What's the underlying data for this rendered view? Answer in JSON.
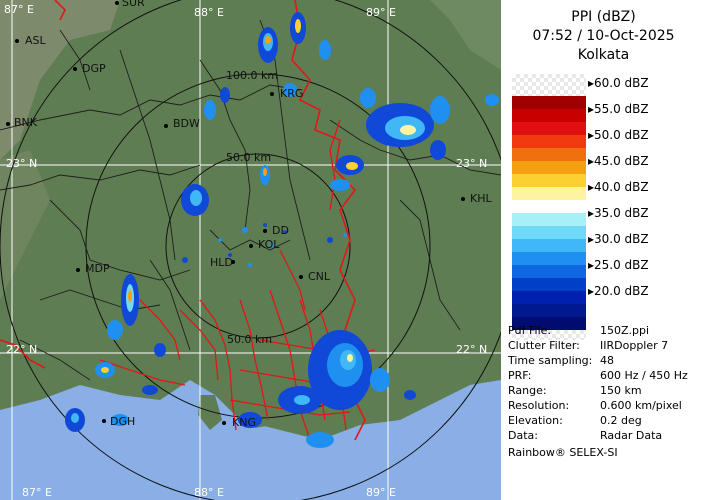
{
  "product": {
    "title": "PPI (dBZ)",
    "time_date": "07:52 / 10-Oct-2025",
    "station": "Kolkata"
  },
  "legend": {
    "ticks": [
      "60.0 dBZ",
      "55.0 dBZ",
      "50.0 dBZ",
      "45.0 dBZ",
      "40.0 dBZ",
      "35.0 dBZ",
      "30.0 dBZ",
      "25.0 dBZ",
      "20.0 dBZ"
    ],
    "bands": [
      "#a00000",
      "#c80000",
      "#e01010",
      "#f03a10",
      "#f07010",
      "#f5a010",
      "#fbd030",
      "#fdf3a0",
      "#ffffff",
      "#a8f0f8",
      "#70d8f8",
      "#40b8f8",
      "#2090f0",
      "#1068e0",
      "#0040c8",
      "#0020b0",
      "#001890",
      "#000c70"
    ]
  },
  "info": [
    {
      "key": "Pdf File:",
      "value": "150Z.ppi"
    },
    {
      "key": "Clutter Filter:",
      "value": "IIRDoppler 7"
    },
    {
      "key": "Time sampling:",
      "value": "48"
    },
    {
      "key": "PRF:",
      "value": "600 Hz / 450 Hz"
    },
    {
      "key": "Range:",
      "value": "150 km"
    },
    {
      "key": "Resolution:",
      "value": "0.600 km/pixel"
    },
    {
      "key": "Elevation:",
      "value": "0.2 deg"
    },
    {
      "key": "Data:",
      "value": "Radar Data"
    }
  ],
  "credit": "Rainbow® SELEX-SI",
  "map": {
    "grid_labels": {
      "lon_top": [
        "87° E",
        "88° E",
        "89° E"
      ],
      "lon_bottom": [
        "87° E",
        "88° E",
        "89° E"
      ],
      "lat_left": [
        "23° N",
        "22° N"
      ],
      "lat_right": [
        "23° N",
        "22° N"
      ]
    },
    "range_labels": [
      "100.0 km",
      "50.0 km",
      "50.0 km"
    ],
    "places": [
      "SUR",
      "ASL",
      "DGP",
      "KRG",
      "BDW",
      "BNK",
      "KHL",
      "DD",
      "KOL",
      "HLD",
      "MDP",
      "CNL",
      "DGH",
      "KNG"
    ],
    "colors": {
      "land": "#5f7d52",
      "hills": "#7d8a6a",
      "sea": "#8aaee6",
      "border": "#e01818",
      "rivers": "#e01818",
      "district": "#222222",
      "range_ring": "#111111",
      "grid": "#ffffff"
    }
  }
}
